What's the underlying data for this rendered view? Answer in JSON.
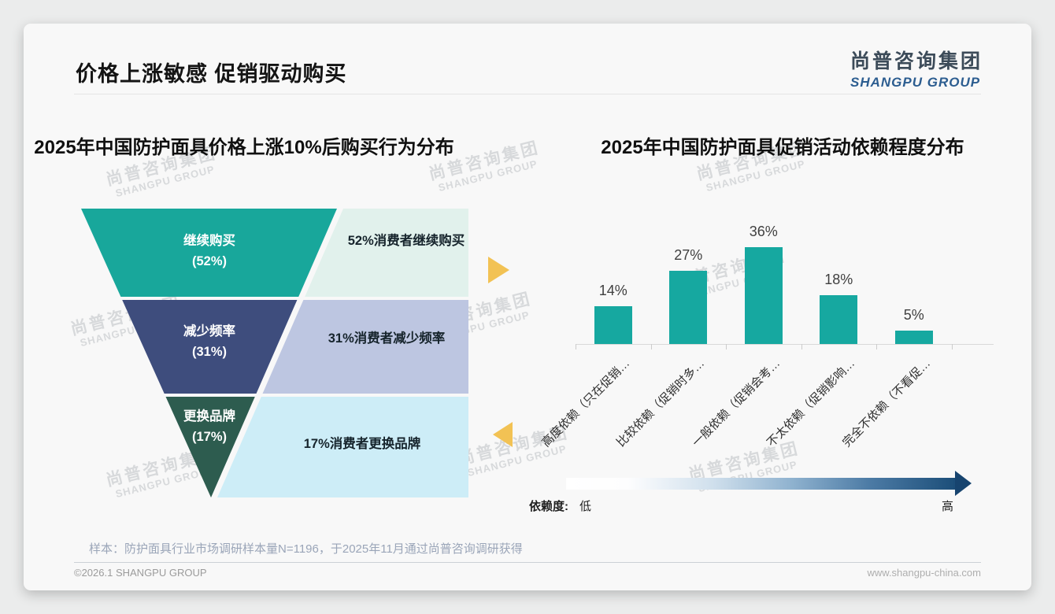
{
  "header": {
    "title": "价格上涨敏感 促销驱动购买"
  },
  "logo": {
    "cn": "尚普咨询集团",
    "en": "SHANGPU GROUP"
  },
  "watermark": {
    "line1": "尚普咨询集团",
    "line2": "SHANGPU GROUP"
  },
  "chart_data": [
    {
      "type": "funnel",
      "title": "2025年中国防护面具价格上涨10%后购买行为分布",
      "stages": [
        {
          "label": "继续购买",
          "value_pct": 52,
          "annotation": "52%消费者继续购买",
          "color": "#18a79b",
          "annotation_bg": "#e1f1ec"
        },
        {
          "label": "减少频率",
          "value_pct": 31,
          "annotation": "31%消费者减少频率",
          "color": "#3e4d7d",
          "annotation_bg": "#bdc6e1"
        },
        {
          "label": "更换品牌",
          "value_pct": 17,
          "annotation": "17%消费者更换品牌",
          "color": "#2d5c4f",
          "annotation_bg": "#cdedf7"
        }
      ],
      "accent_arrow_color": "#f2c254"
    },
    {
      "type": "bar",
      "title": "2025年中国防护面具促销活动依赖程度分布",
      "categories": [
        "高度依赖（只在促销…",
        "比较依赖（促销时多…",
        "一般依赖（促销会考…",
        "不太依赖（促销影响…",
        "完全不依赖（不看促…"
      ],
      "values": [
        14,
        27,
        36,
        18,
        5
      ],
      "unit": "%",
      "bar_color": "#16a8a0",
      "ylim": [
        0,
        40
      ],
      "grid": false,
      "legend": {
        "label": "依赖度:",
        "low": "低",
        "high": "高",
        "gradient_from": "#ffffff",
        "gradient_to": "#1c4e79"
      }
    }
  ],
  "footnote": "样本：防护面具行业市场调研样本量N=1196，于2025年11月通过尚普咨询调研获得",
  "footer": {
    "left": "©2026.1 SHANGPU GROUP",
    "right": "www.shangpu-china.com"
  }
}
